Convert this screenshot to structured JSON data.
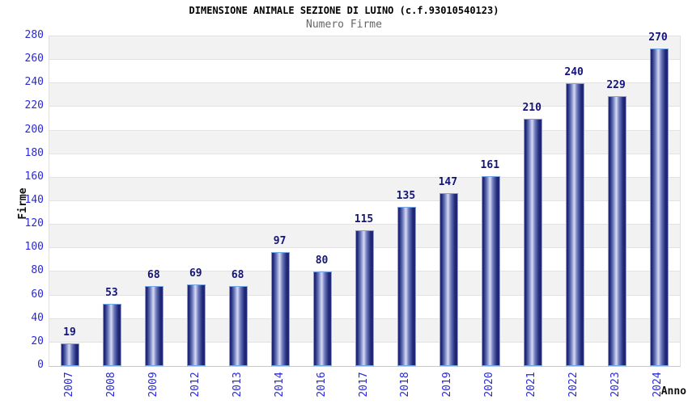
{
  "chart_data": {
    "type": "bar",
    "title": "DIMENSIONE ANIMALE SEZIONE DI LUINO (c.f.93010540123)",
    "subtitle": "Numero Firme",
    "xlabel": "Anno",
    "ylabel": "Firme",
    "categories": [
      "2007",
      "2008",
      "2009",
      "2012",
      "2013",
      "2014",
      "2016",
      "2017",
      "2018",
      "2019",
      "2020",
      "2021",
      "2022",
      "2023",
      "2024"
    ],
    "values": [
      19,
      53,
      68,
      69,
      68,
      97,
      80,
      115,
      135,
      147,
      161,
      210,
      240,
      229,
      270
    ],
    "ylim": [
      0,
      280
    ],
    "ytick_step": 20,
    "grid": true,
    "legend": "none",
    "bar_style": "gradient-cylinder",
    "colors": {
      "bar_dark": "#1f2877",
      "bar_mid": "#6d79bd",
      "bar_highlight": "#d6dbf2",
      "bar_border": "#74a7e8",
      "axis_tick_text": "#2929d6",
      "value_label_text": "#14147a",
      "band_shaded": "#f2f2f2",
      "band_plain": "#ffffff",
      "gridline": "#e2e2e2",
      "baseline": "#c8c8c8",
      "title_text": "#000000",
      "subtitle_text": "#666666",
      "axis_title_text": "#111111"
    }
  }
}
